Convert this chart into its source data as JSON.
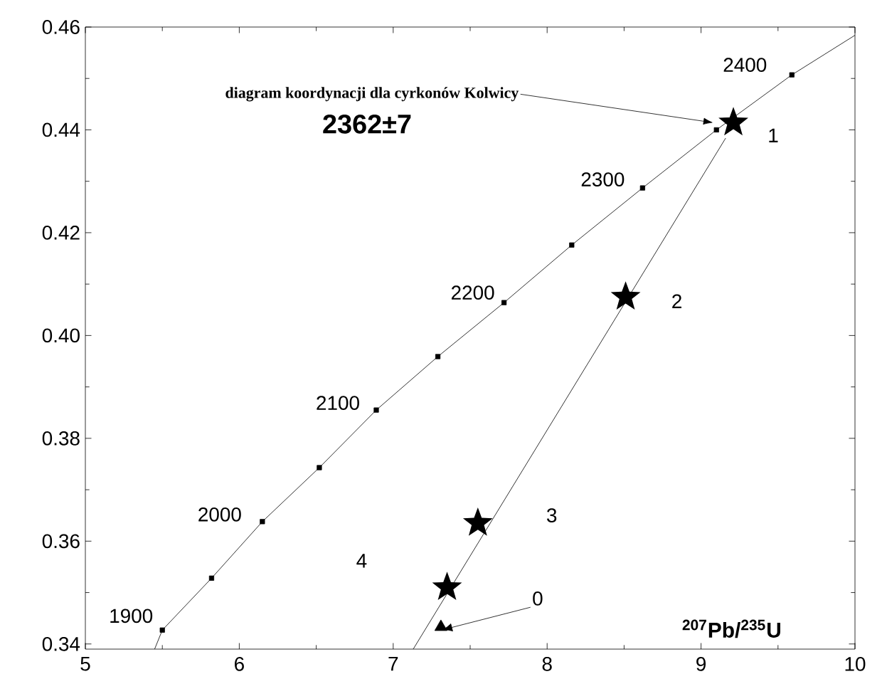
{
  "chart_data": {
    "type": "scatter",
    "xlabel": "$^{207}$Pb/$^{235}$U",
    "xlim": [
      5,
      10
    ],
    "ylim": [
      0.339,
      0.46
    ],
    "xticks": [
      5,
      6,
      7,
      8,
      9,
      10
    ],
    "yticks": [
      {
        "value": 0.34,
        "label": "0.34"
      },
      {
        "value": 0.36,
        "label": "0.36"
      },
      {
        "value": 0.38,
        "label": "0.38"
      },
      {
        "value": 0.4,
        "label": "0.40"
      },
      {
        "value": 0.42,
        "label": "0.42"
      },
      {
        "value": 0.44,
        "label": "0.44"
      },
      {
        "value": 0.46,
        "label": "0.46"
      }
    ],
    "series": [
      {
        "type": "line",
        "color": "#000000",
        "marker": "none",
        "x": [
          5.45,
          5.5,
          5.82,
          6.15,
          6.52,
          6.89,
          7.29,
          7.72,
          8.16,
          8.62,
          9.1,
          9.59,
          10.0
        ],
        "values": [
          0.339,
          0.3427,
          0.3528,
          0.3638,
          0.3743,
          0.3855,
          0.3959,
          0.4064,
          0.4176,
          0.4287,
          0.44,
          0.4507,
          0.4584
        ]
      },
      {
        "type": "scatter",
        "color": "#000000",
        "marker": "square",
        "x": [
          5.5,
          5.82,
          6.15,
          6.52,
          6.89,
          7.29,
          7.72,
          8.16,
          8.62,
          9.1,
          9.59
        ],
        "values": [
          0.3427,
          0.3528,
          0.3638,
          0.3743,
          0.3855,
          0.3959,
          0.4064,
          0.4176,
          0.4287,
          0.44,
          0.4507
        ]
      },
      {
        "type": "line",
        "color": "#000000",
        "marker": "none",
        "x": [
          7.13,
          9.16
        ],
        "values": [
          0.339,
          0.4384
        ]
      },
      {
        "type": "scatter",
        "color": "#000000",
        "marker": "star",
        "x": [
          9.21,
          8.51,
          7.55,
          7.35
        ],
        "values": [
          0.4414,
          0.4075,
          0.3635,
          0.351
        ]
      },
      {
        "type": "scatter",
        "color": "#000000",
        "marker": "triangle",
        "x": [
          7.31
        ],
        "values": [
          0.3433
        ]
      }
    ],
    "annotations": [
      {
        "text": "diagram koordynacji dla cyrkonów Kolwicy",
        "x": 9.08,
        "y": 0.4414
      },
      "2362±7",
      {
        "text": "1",
        "x": 9.21,
        "y": 0.4414
      },
      {
        "text": "2",
        "x": 8.51,
        "y": 0.4075
      },
      "3",
      "4",
      {
        "text": "0",
        "x": 7.31,
        "y": 0.3433
      },
      {
        "text": "2400",
        "x": 9.59,
        "y": 0.4507
      },
      {
        "text": "2300",
        "x": 8.62,
        "y": 0.4287
      },
      {
        "text": "2200",
        "x": 7.72,
        "y": 0.4064
      },
      {
        "text": "2100",
        "x": 6.89,
        "y": 0.3855
      },
      {
        "text": "2000",
        "x": 6.15,
        "y": 0.3638
      },
      {
        "text": "1900",
        "x": 5.5,
        "y": 0.3427
      }
    ]
  }
}
